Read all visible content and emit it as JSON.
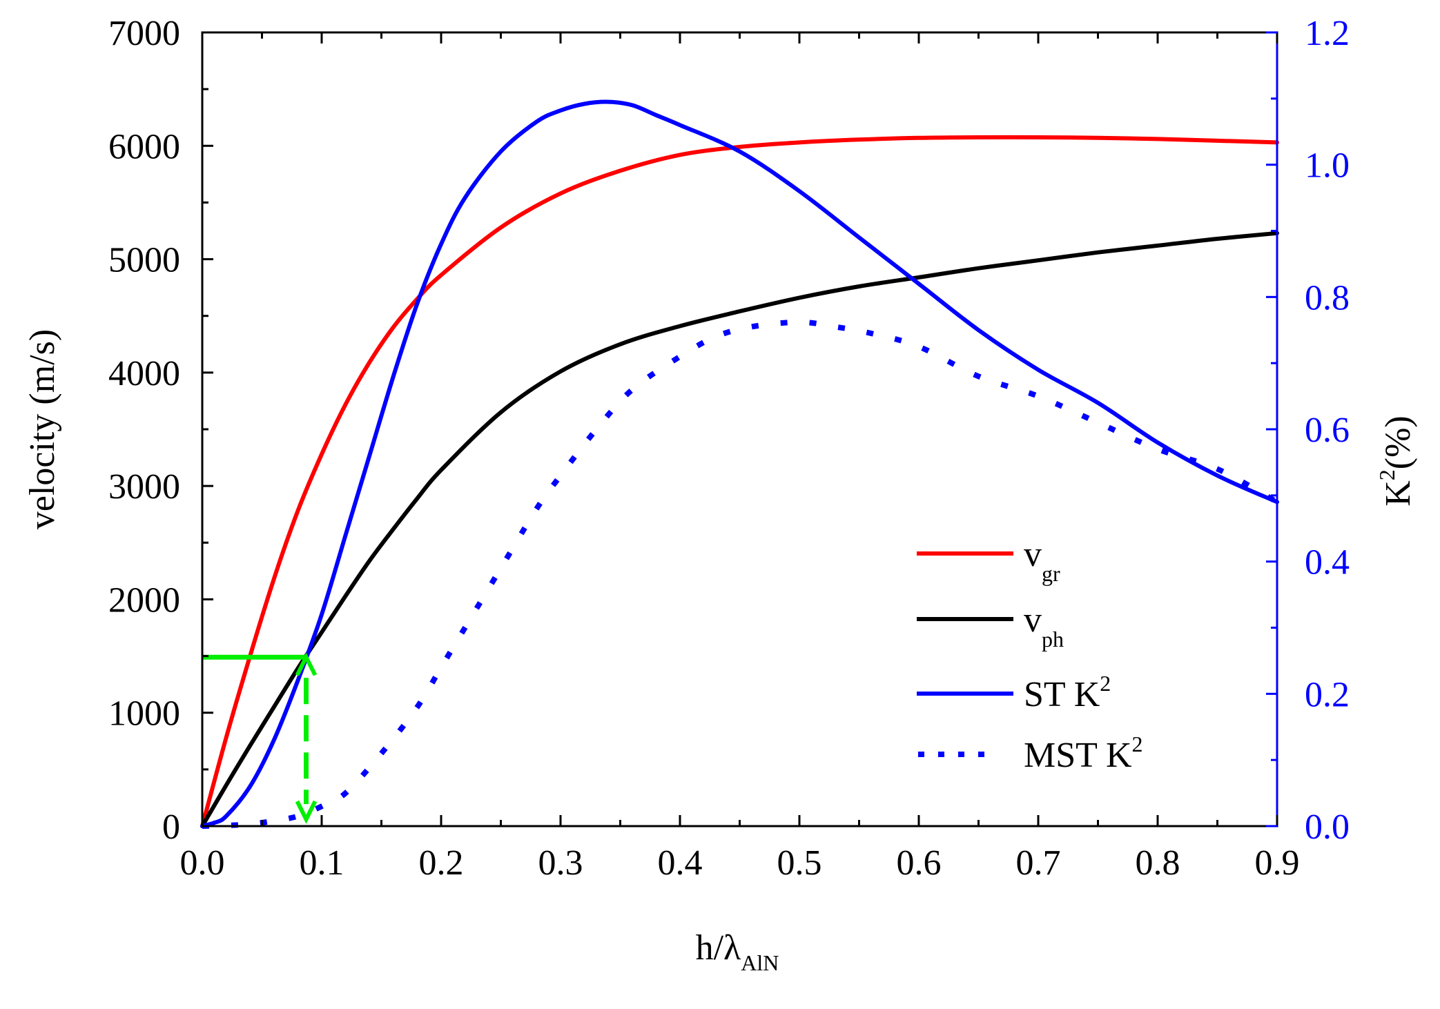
{
  "colors": {
    "vgr": "#ff0000",
    "vph": "#000000",
    "k2": "#0000ff",
    "marker": "#00ee00",
    "axis_left": "#000000",
    "axis_right": "#0000ff"
  },
  "chart_data": {
    "type": "line",
    "xlabel_main": "h/λ",
    "xlabel_sub": "AlN",
    "ylabel": "velocity (m/s)",
    "y2label_main": "K",
    "y2label_sup": "2",
    "y2label_rest": "(%)",
    "xlim": [
      0,
      0.9
    ],
    "ylim": [
      0,
      7000
    ],
    "y2lim": [
      0,
      1.2
    ],
    "x_ticks": [
      0.0,
      0.1,
      0.2,
      0.3,
      0.4,
      0.5,
      0.6,
      0.7,
      0.8,
      0.9
    ],
    "x_tick_labels": [
      "0.0",
      "0.1",
      "0.2",
      "0.3",
      "0.4",
      "0.5",
      "0.6",
      "0.7",
      "0.8",
      "0.9"
    ],
    "y_ticks": [
      0,
      1000,
      2000,
      3000,
      4000,
      5000,
      6000,
      7000
    ],
    "y_tick_labels": [
      "0",
      "1000",
      "2000",
      "3000",
      "4000",
      "5000",
      "6000",
      "7000"
    ],
    "y2_ticks": [
      0.0,
      0.2,
      0.4,
      0.6,
      0.8,
      1.0,
      1.2
    ],
    "y2_tick_labels": [
      "0.0",
      "0.2",
      "0.4",
      "0.6",
      "0.8",
      "1.0",
      "1.2"
    ],
    "legend": [
      {
        "id": "vgr",
        "main": "v",
        "sub": "gr",
        "sup": "",
        "style": "solid"
      },
      {
        "id": "vph",
        "main": "v",
        "sub": "ph",
        "sup": "",
        "style": "solid"
      },
      {
        "id": "st",
        "main": "ST K",
        "sub": "",
        "sup": "2",
        "style": "solid"
      },
      {
        "id": "mst",
        "main": "MST K",
        "sub": "",
        "sup": "2",
        "style": "dotted"
      }
    ],
    "series": [
      {
        "id": "vgr",
        "name": "v_gr",
        "axis": "left",
        "style": "solid",
        "x": [
          0,
          0.02,
          0.04,
          0.06,
          0.08,
          0.1,
          0.12,
          0.14,
          0.16,
          0.18,
          0.2,
          0.25,
          0.3,
          0.35,
          0.4,
          0.45,
          0.5,
          0.55,
          0.6,
          0.65,
          0.7,
          0.75,
          0.8,
          0.85,
          0.9
        ],
        "y": [
          0,
          780,
          1500,
          2180,
          2780,
          3280,
          3720,
          4090,
          4400,
          4650,
          4860,
          5280,
          5580,
          5780,
          5920,
          5990,
          6030,
          6055,
          6070,
          6075,
          6075,
          6070,
          6060,
          6045,
          6030
        ]
      },
      {
        "id": "vph",
        "name": "v_ph",
        "axis": "left",
        "style": "solid",
        "x": [
          0,
          0.02,
          0.04,
          0.06,
          0.08,
          0.1,
          0.12,
          0.14,
          0.16,
          0.18,
          0.2,
          0.25,
          0.3,
          0.35,
          0.4,
          0.45,
          0.5,
          0.55,
          0.6,
          0.65,
          0.7,
          0.75,
          0.8,
          0.85,
          0.9
        ],
        "y": [
          0,
          360,
          710,
          1050,
          1390,
          1710,
          2030,
          2340,
          2620,
          2890,
          3140,
          3650,
          4010,
          4250,
          4410,
          4540,
          4660,
          4760,
          4840,
          4920,
          4990,
          5060,
          5120,
          5180,
          5230
        ]
      },
      {
        "id": "st",
        "name": "ST K2",
        "axis": "right",
        "style": "solid",
        "x": [
          0,
          0.01,
          0.02,
          0.04,
          0.06,
          0.08,
          0.1,
          0.12,
          0.14,
          0.16,
          0.18,
          0.2,
          0.22,
          0.25,
          0.28,
          0.3,
          0.32,
          0.34,
          0.36,
          0.38,
          0.4,
          0.45,
          0.5,
          0.55,
          0.6,
          0.65,
          0.7,
          0.75,
          0.8,
          0.85,
          0.9
        ],
        "y": [
          0,
          0.005,
          0.015,
          0.06,
          0.13,
          0.22,
          0.32,
          0.44,
          0.56,
          0.68,
          0.79,
          0.88,
          0.95,
          1.02,
          1.065,
          1.082,
          1.092,
          1.095,
          1.09,
          1.075,
          1.06,
          1.02,
          0.96,
          0.89,
          0.82,
          0.75,
          0.69,
          0.64,
          0.58,
          0.53,
          0.49
        ]
      },
      {
        "id": "mst",
        "name": "MST K2",
        "axis": "right",
        "style": "dotted",
        "x": [
          0,
          0.02,
          0.04,
          0.06,
          0.08,
          0.1,
          0.12,
          0.15,
          0.18,
          0.2,
          0.22,
          0.25,
          0.28,
          0.3,
          0.33,
          0.36,
          0.4,
          0.43,
          0.46,
          0.5,
          0.53,
          0.56,
          0.6,
          0.65,
          0.7,
          0.75,
          0.8,
          0.85,
          0.9
        ],
        "y": [
          0,
          0.001,
          0.003,
          0.008,
          0.015,
          0.03,
          0.05,
          0.11,
          0.18,
          0.24,
          0.3,
          0.39,
          0.48,
          0.53,
          0.6,
          0.66,
          0.71,
          0.74,
          0.755,
          0.762,
          0.755,
          0.745,
          0.725,
          0.68,
          0.65,
          0.61,
          0.57,
          0.54,
          0.49
        ]
      }
    ],
    "markers": {
      "h_line": {
        "y": 1490,
        "x_from": 0,
        "x_to": 0.087
      },
      "v_arrow": {
        "x": 0.087,
        "y_from": 1490,
        "y_to": 60
      }
    }
  }
}
